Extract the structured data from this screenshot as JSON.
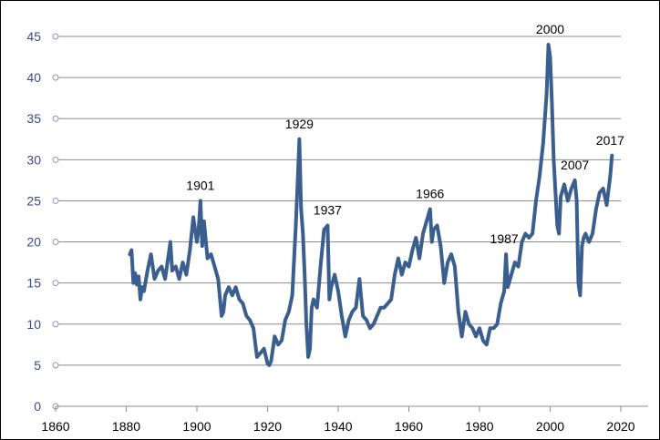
{
  "chart_data": {
    "type": "line",
    "title": "",
    "xlabel": "",
    "ylabel": "",
    "xlim": [
      1860,
      2020
    ],
    "ylim": [
      0,
      45
    ],
    "x_ticks": [
      "1860",
      "1880",
      "1900",
      "1920",
      "1940",
      "1960",
      "1980",
      "2000",
      "2020"
    ],
    "y_ticks": [
      "0",
      "5",
      "10",
      "15",
      "20",
      "25",
      "30",
      "35",
      "40",
      "45"
    ],
    "grid": "horizontal",
    "legend": "none",
    "line_color": "#3a5f8f",
    "series": [
      {
        "x": [
          1881,
          1881.5,
          1882,
          1882.5,
          1883,
          1883.5,
          1884,
          1884.5,
          1885,
          1886,
          1887,
          1888,
          1889,
          1890,
          1891,
          1892,
          1892.5,
          1893,
          1894,
          1895,
          1896,
          1897,
          1898,
          1899,
          1900,
          1900.5,
          1901,
          1901.5,
          1902,
          1903,
          1904,
          1905,
          1906,
          1907,
          1907.5,
          1908,
          1909,
          1910,
          1911,
          1912,
          1913,
          1914,
          1915,
          1916,
          1917,
          1918,
          1919,
          1920,
          1920.5,
          1921,
          1922,
          1923,
          1924,
          1925,
          1926,
          1927,
          1928,
          1928.5,
          1929,
          1929.5,
          1930,
          1930.5,
          1931,
          1931.5,
          1932,
          1932.5,
          1933,
          1934,
          1935,
          1936,
          1937,
          1937.5,
          1938,
          1939,
          1940,
          1941,
          1942,
          1943,
          1944,
          1945,
          1946,
          1947,
          1948,
          1949,
          1950,
          1951,
          1952,
          1953,
          1954,
          1955,
          1956,
          1957,
          1958,
          1959,
          1960,
          1961,
          1962,
          1963,
          1964,
          1965,
          1966,
          1966.5,
          1967,
          1968,
          1969,
          1970,
          1971,
          1972,
          1973,
          1974,
          1975,
          1976,
          1977,
          1978,
          1979,
          1980,
          1981,
          1982,
          1983,
          1984,
          1985,
          1986,
          1987,
          1987.5,
          1988,
          1989,
          1990,
          1991,
          1992,
          1993,
          1994,
          1995,
          1996,
          1997,
          1998,
          1999,
          1999.5,
          2000,
          2000.5,
          2001,
          2002,
          2002.5,
          2003,
          2004,
          2005,
          2006,
          2007,
          2007.5,
          2008,
          2008.5,
          2009,
          2009.5,
          2010,
          2011,
          2012,
          2013,
          2014,
          2015,
          2016,
          2017,
          2017.5
        ],
        "y": [
          18.5,
          19.0,
          15.0,
          16.2,
          14.8,
          15.8,
          13.0,
          14.5,
          14.0,
          16.5,
          18.5,
          15.5,
          16.5,
          17.0,
          15.5,
          18.5,
          20.0,
          16.5,
          17.0,
          15.5,
          17.5,
          16.0,
          19.0,
          23.0,
          20.0,
          21.5,
          25.0,
          19.5,
          22.5,
          18.0,
          18.5,
          17.0,
          15.5,
          11.0,
          11.5,
          13.5,
          14.5,
          13.5,
          14.5,
          13.0,
          12.5,
          11.0,
          10.5,
          9.5,
          6.0,
          6.5,
          7.0,
          5.2,
          5.0,
          5.5,
          8.5,
          7.5,
          8.0,
          10.5,
          11.5,
          13.5,
          22.0,
          27.0,
          32.5,
          24.0,
          21.0,
          16.0,
          10.0,
          6.0,
          7.0,
          12.0,
          13.0,
          12.0,
          17.0,
          21.5,
          22.0,
          13.0,
          14.5,
          16.0,
          14.0,
          11.0,
          8.5,
          10.5,
          11.5,
          12.0,
          15.5,
          11.0,
          10.5,
          9.5,
          10.0,
          11.0,
          12.0,
          12.0,
          12.5,
          13.0,
          16.0,
          18.0,
          16.0,
          17.5,
          17.0,
          19.0,
          20.5,
          18.0,
          21.0,
          22.5,
          24.0,
          20.0,
          21.5,
          22.0,
          19.5,
          15.0,
          17.5,
          18.5,
          17.0,
          11.5,
          8.5,
          11.5,
          10.0,
          9.5,
          8.5,
          9.5,
          8.0,
          7.5,
          9.5,
          9.5,
          10.0,
          12.5,
          14.0,
          18.5,
          14.5,
          16.0,
          17.5,
          17.0,
          20.0,
          21.0,
          20.5,
          21.0,
          25.0,
          28.0,
          32.0,
          38.0,
          44.0,
          42.5,
          37.0,
          30.0,
          22.0,
          21.0,
          25.5,
          27.0,
          25.0,
          26.5,
          27.5,
          25.0,
          15.0,
          13.5,
          19.5,
          20.5,
          21.0,
          20.0,
          21.0,
          24.0,
          26.0,
          26.5,
          24.5,
          28.0,
          30.5
        ]
      }
    ],
    "annotations": [
      {
        "x": 1901,
        "y": 25.0,
        "text": "1901"
      },
      {
        "x": 1929,
        "y": 32.5,
        "text": "1929"
      },
      {
        "x": 1937,
        "y": 22.0,
        "text": "1937"
      },
      {
        "x": 1966,
        "y": 24.0,
        "text": "1966"
      },
      {
        "x": 1987,
        "y": 18.5,
        "text": "1987"
      },
      {
        "x": 2000,
        "y": 44.0,
        "text": "2000"
      },
      {
        "x": 2007,
        "y": 27.5,
        "text": "2007"
      },
      {
        "x": 2017,
        "y": 30.5,
        "text": "2017"
      }
    ]
  }
}
